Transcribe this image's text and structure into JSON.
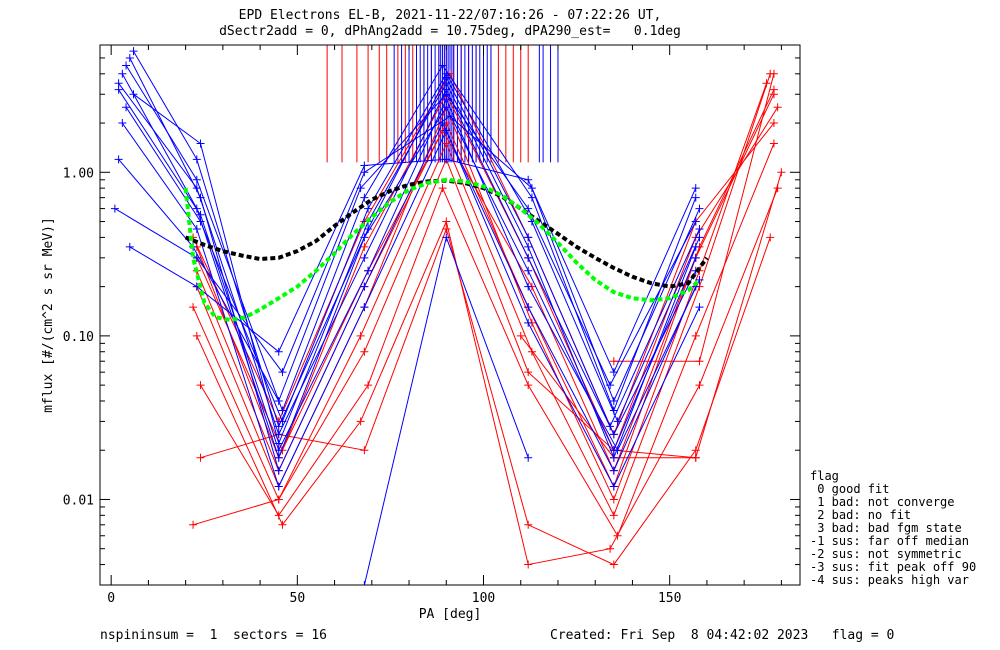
{
  "title": {
    "line1": "EPD Electrons EL-B, 2021-11-22/07:16:26 - 07:22:26 UT,",
    "line2": "dSectr2add = 0, dPhAng2add = 10.75deg, dPA290_est=   0.1deg"
  },
  "footer": {
    "left": "nspininsum =  1  sectors = 16",
    "right": "Created: Fri Sep  8 04:42:02 2023   flag = 0"
  },
  "legend": {
    "title": "flag",
    "items": [
      " 0 good fit",
      " 1 bad: not converge",
      " 2 bad: no fit",
      " 3 bad: bad fgm state",
      "-1 sus: far off median",
      "-2 sus: not symmetric",
      "-3 sus: fit peak off 90",
      "-4 sus: peaks high var"
    ]
  },
  "chart_data": {
    "type": "line",
    "xlabel": "PA [deg]",
    "ylabel": "mflux [#/(cm^2 s sr MeV)]",
    "xlim": [
      -3,
      185
    ],
    "ylim": [
      0.003,
      6.0
    ],
    "yscale": "log",
    "xticks": [
      0,
      50,
      100,
      150
    ],
    "xtick_labels": [
      "0",
      "50",
      "100",
      "150"
    ],
    "yticks": [
      0.01,
      0.1,
      1.0
    ],
    "ytick_labels": [
      "0.01",
      "0.10",
      "1.00"
    ],
    "colors": {
      "blue": "#0000ff",
      "red": "#ff0000",
      "black": "#000000",
      "green": "#00ff00"
    },
    "series": [
      {
        "color": "blue",
        "x": [
          2,
          23,
          45,
          68,
          90,
          112,
          135,
          157
        ],
        "y": [
          3.5,
          0.8,
          0.025,
          0.3,
          3.2,
          0.3,
          0.025,
          0.25
        ]
      },
      {
        "color": "blue",
        "x": [
          3,
          23,
          45,
          68,
          90,
          112,
          135,
          157
        ],
        "y": [
          4.0,
          0.6,
          0.018,
          0.4,
          2.5,
          0.25,
          0.02,
          0.3
        ]
      },
      {
        "color": "blue",
        "x": [
          4,
          24,
          46,
          69,
          90,
          113,
          136,
          158
        ],
        "y": [
          2.5,
          0.5,
          0.03,
          0.6,
          4.0,
          0.5,
          0.03,
          0.4
        ]
      },
      {
        "color": "blue",
        "x": [
          5,
          24,
          45,
          68,
          89,
          112,
          135,
          157
        ],
        "y": [
          5.0,
          0.7,
          0.015,
          0.2,
          2.0,
          0.15,
          0.015,
          0.2
        ]
      },
      {
        "color": "blue",
        "x": [
          2,
          22,
          45,
          67,
          90,
          112,
          134,
          157
        ],
        "y": [
          1.2,
          0.35,
          0.04,
          0.8,
          3.0,
          0.6,
          0.05,
          0.5
        ]
      },
      {
        "color": "blue",
        "x": [
          1,
          23,
          46,
          68,
          91,
          113,
          135,
          158
        ],
        "y": [
          0.6,
          0.3,
          0.06,
          1.0,
          2.2,
          0.8,
          0.04,
          0.6
        ]
      },
      {
        "color": "blue",
        "x": [
          6,
          24,
          45,
          69,
          90,
          112,
          135,
          157
        ],
        "y": [
          3.0,
          1.5,
          0.022,
          0.5,
          3.5,
          0.35,
          0.018,
          0.35
        ]
      },
      {
        "color": "blue",
        "x": [
          3,
          23,
          45,
          68,
          90,
          112,
          135,
          158
        ],
        "y": [
          2.0,
          0.45,
          0.012,
          0.15,
          1.8,
          0.12,
          0.012,
          0.15
        ]
      },
      {
        "color": "blue",
        "x": [
          4,
          23,
          46,
          68,
          89,
          113,
          135,
          157
        ],
        "y": [
          4.5,
          0.9,
          0.035,
          0.7,
          4.5,
          0.7,
          0.035,
          0.7
        ]
      },
      {
        "color": "blue",
        "x": [
          2,
          24,
          45,
          69,
          90,
          112,
          136,
          158
        ],
        "y": [
          3.2,
          0.55,
          0.02,
          0.25,
          2.8,
          0.2,
          0.02,
          0.22
        ]
      },
      {
        "color": "blue",
        "x": [
          5,
          23,
          45,
          68,
          90,
          112,
          135,
          157
        ],
        "y": [
          0.35,
          0.2,
          0.08,
          1.1,
          1.2,
          0.9,
          0.06,
          0.8
        ]
      },
      {
        "color": "blue",
        "x": [
          6,
          23,
          45,
          69,
          90,
          112,
          134,
          158
        ],
        "y": [
          5.5,
          1.2,
          0.028,
          0.45,
          3.8,
          0.4,
          0.028,
          0.45
        ]
      },
      {
        "color": "blue",
        "x": [
          68,
          90,
          112
        ],
        "y": [
          0.003,
          0.4,
          0.018
        ]
      },
      {
        "color": "red",
        "x": [
          23,
          45,
          68,
          90,
          112,
          135,
          157,
          178
        ],
        "y": [
          0.25,
          0.015,
          0.2,
          2.0,
          0.15,
          0.012,
          0.3,
          3.0
        ]
      },
      {
        "color": "red",
        "x": [
          22,
          45,
          67,
          90,
          113,
          135,
          158,
          177
        ],
        "y": [
          0.15,
          0.01,
          0.1,
          1.5,
          0.08,
          0.008,
          0.2,
          4.0
        ]
      },
      {
        "color": "red",
        "x": [
          23,
          46,
          68,
          90,
          112,
          135,
          157,
          179
        ],
        "y": [
          0.3,
          0.02,
          0.35,
          3.0,
          0.3,
          0.02,
          0.4,
          2.5
        ]
      },
      {
        "color": "red",
        "x": [
          24,
          45,
          69,
          89,
          112,
          136,
          157,
          178
        ],
        "y": [
          0.05,
          0.008,
          0.05,
          0.8,
          0.05,
          0.006,
          0.1,
          1.5
        ]
      },
      {
        "color": "red",
        "x": [
          23,
          45,
          68,
          90,
          113,
          135,
          158,
          176
        ],
        "y": [
          0.2,
          0.012,
          0.15,
          2.5,
          0.12,
          0.01,
          0.25,
          3.5
        ]
      },
      {
        "color": "red",
        "x": [
          22,
          45,
          68,
          91,
          112,
          135,
          157,
          178
        ],
        "y": [
          0.4,
          0.03,
          0.5,
          4.0,
          0.4,
          0.025,
          0.5,
          2.0
        ]
      },
      {
        "color": "red",
        "x": [
          23,
          46,
          67,
          90,
          112,
          134,
          158,
          179
        ],
        "y": [
          0.1,
          0.007,
          0.03,
          0.5,
          0.004,
          0.005,
          0.05,
          0.8
        ]
      },
      {
        "color": "red",
        "x": [
          24,
          45,
          68,
          90,
          112,
          135,
          157,
          177
        ],
        "y": [
          0.018,
          0.025,
          0.02,
          0.45,
          0.007,
          0.004,
          0.02,
          0.4
        ]
      },
      {
        "color": "red",
        "x": [
          23,
          45,
          69,
          89,
          113,
          135,
          158,
          178
        ],
        "y": [
          0.35,
          0.018,
          0.25,
          1.8,
          0.2,
          0.015,
          0.35,
          3.2
        ]
      },
      {
        "color": "red",
        "x": [
          22,
          45,
          68,
          90,
          112,
          135,
          157,
          180
        ],
        "y": [
          0.007,
          0.01,
          0.08,
          1.2,
          0.06,
          0.02,
          0.018,
          1.0
        ]
      },
      {
        "color": "red",
        "x": [
          110,
          135,
          157
        ],
        "y": [
          0.1,
          0.018,
          0.018
        ]
      },
      {
        "color": "red",
        "x": [
          135,
          158,
          178
        ],
        "y": [
          0.07,
          0.07,
          4.0
        ]
      }
    ],
    "fits": [
      {
        "name": "",
        "color": "black",
        "x": [
          20,
          25,
          30,
          35,
          40,
          45,
          50,
          55,
          60,
          65,
          70,
          75,
          80,
          85,
          90,
          95,
          100,
          105,
          110,
          115,
          120,
          125,
          130,
          135,
          140,
          145,
          150,
          155,
          160
        ],
        "y": [
          0.4,
          0.36,
          0.33,
          0.31,
          0.295,
          0.3,
          0.33,
          0.38,
          0.47,
          0.57,
          0.68,
          0.77,
          0.84,
          0.88,
          0.89,
          0.86,
          0.8,
          0.71,
          0.6,
          0.5,
          0.42,
          0.35,
          0.3,
          0.26,
          0.23,
          0.21,
          0.2,
          0.21,
          0.3
        ]
      },
      {
        "name": "",
        "color": "green",
        "x": [
          20,
          22,
          25,
          28,
          32,
          36,
          40,
          45,
          50,
          55,
          60,
          65,
          70,
          75,
          80,
          85,
          90,
          95,
          100,
          105,
          110,
          115,
          120,
          125,
          130,
          135,
          140,
          145,
          150,
          155,
          158
        ],
        "y": [
          0.8,
          0.3,
          0.16,
          0.13,
          0.125,
          0.13,
          0.145,
          0.17,
          0.2,
          0.25,
          0.32,
          0.42,
          0.53,
          0.66,
          0.78,
          0.86,
          0.9,
          0.88,
          0.82,
          0.72,
          0.6,
          0.48,
          0.37,
          0.28,
          0.22,
          0.185,
          0.17,
          0.165,
          0.17,
          0.19,
          0.22
        ]
      }
    ],
    "top_markers": {
      "blue_x": [
        76,
        78,
        80,
        82,
        83,
        84,
        85,
        86,
        87,
        88,
        88.5,
        89,
        89.5,
        90,
        90.5,
        91,
        91.5,
        92,
        93,
        94,
        95,
        96,
        97,
        98,
        99,
        100,
        101,
        102,
        115,
        116,
        118,
        120
      ],
      "red_x": [
        58,
        62,
        66,
        69,
        72,
        74,
        77,
        79,
        81,
        84,
        86,
        88,
        90,
        92,
        94,
        96,
        98,
        100,
        102,
        104,
        106,
        108,
        110,
        112
      ],
      "y_top": 6.0,
      "y_bottom": 1.15
    }
  }
}
